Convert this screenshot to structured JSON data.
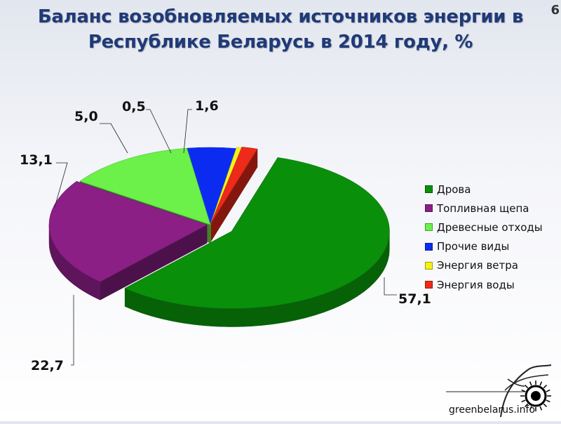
{
  "page": {
    "title": "Баланс возобновляемых источников энергии в Республике Беларусь в 2014 году, %",
    "corner_mark": "6"
  },
  "logo": {
    "text": "greenbelarus.info"
  },
  "colors": {
    "background": "#ffffff",
    "title": "#1f3a78"
  },
  "chart_data": {
    "type": "pie",
    "title": "Баланс возобновляемых источников энергии в Республике Беларусь в 2014 году, %",
    "style": "3d-exploded",
    "legend_position": "right",
    "slices": [
      {
        "label": "Дрова",
        "value": 57.1,
        "value_label": "57,1",
        "color": "#0a8f0a"
      },
      {
        "label": "Топливная щепа",
        "value": 22.7,
        "value_label": "22,7",
        "color": "#8b1f86"
      },
      {
        "label": "Древесные отходы",
        "value": 13.1,
        "value_label": "13,1",
        "color": "#6cf04a"
      },
      {
        "label": "Прочие виды",
        "value": 5.0,
        "value_label": "5,0",
        "color": "#0b2cf0"
      },
      {
        "label": "Энергия ветра",
        "value": 0.5,
        "value_label": "0,5",
        "color": "#f5f21a"
      },
      {
        "label": "Энергия воды",
        "value": 1.6,
        "value_label": "1,6",
        "color": "#ee2a1a"
      }
    ]
  }
}
